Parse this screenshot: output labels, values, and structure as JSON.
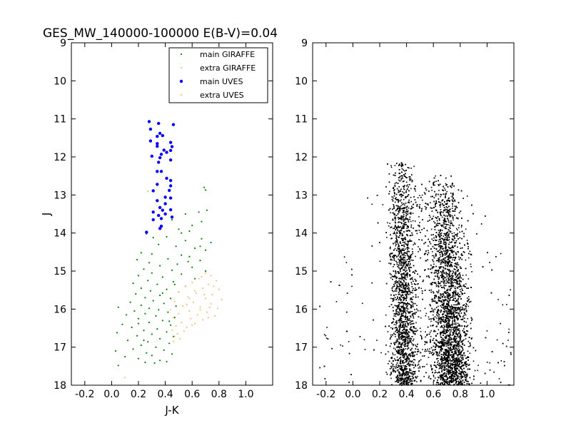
{
  "chart_data": [
    {
      "type": "scatter",
      "title": "GES_MW_140000-100000 E(B-V)=0.04",
      "xlabel": "J-K",
      "ylabel": "J",
      "xlim": [
        -0.3,
        1.2
      ],
      "ylim": [
        18,
        9
      ],
      "y_inverted": true,
      "x_ticks": [
        "-0.2",
        "0.0",
        "0.2",
        "0.4",
        "0.6",
        "0.8",
        "1.0"
      ],
      "y_ticks": [
        "9",
        "10",
        "11",
        "12",
        "13",
        "14",
        "15",
        "16",
        "17",
        "18"
      ],
      "legend_position": "top-right",
      "legend": [
        {
          "label": "main GIRAFFE",
          "color": "#008000",
          "marker": "small-dot"
        },
        {
          "label": "extra GIRAFFE",
          "color": "#f2c27a",
          "marker": "small-dot"
        },
        {
          "label": "main UVES",
          "color": "#0000ff",
          "marker": "dot"
        },
        {
          "label": "extra UVES",
          "color": "#f2c27a",
          "marker": "small-dot"
        }
      ],
      "series": [
        {
          "name": "main UVES",
          "color": "#0000ff",
          "points": [
            [
              0.28,
              11.07
            ],
            [
              0.29,
              11.27
            ],
            [
              0.35,
              11.12
            ],
            [
              0.46,
              11.15
            ],
            [
              0.36,
              11.38
            ],
            [
              0.34,
              11.46
            ],
            [
              0.38,
              11.44
            ],
            [
              0.29,
              11.58
            ],
            [
              0.34,
              11.65
            ],
            [
              0.34,
              11.72
            ],
            [
              0.44,
              11.62
            ],
            [
              0.45,
              11.73
            ],
            [
              0.39,
              11.82
            ],
            [
              0.44,
              11.83
            ],
            [
              0.37,
              11.93
            ],
            [
              0.41,
              11.88
            ],
            [
              0.3,
              11.98
            ],
            [
              0.36,
              12.02
            ],
            [
              0.35,
              12.14
            ],
            [
              0.44,
              12.08
            ],
            [
              0.34,
              12.38
            ],
            [
              0.37,
              12.38
            ],
            [
              0.41,
              12.56
            ],
            [
              0.44,
              12.62
            ],
            [
              0.34,
              12.72
            ],
            [
              0.44,
              12.76
            ],
            [
              0.31,
              12.89
            ],
            [
              0.43,
              12.88
            ],
            [
              0.4,
              13.06
            ],
            [
              0.44,
              13.08
            ],
            [
              0.34,
              13.15
            ],
            [
              0.4,
              13.23
            ],
            [
              0.36,
              13.33
            ],
            [
              0.38,
              13.4
            ],
            [
              0.44,
              13.39
            ],
            [
              0.31,
              13.45
            ],
            [
              0.35,
              13.54
            ],
            [
              0.4,
              13.5
            ],
            [
              0.45,
              13.58
            ],
            [
              0.31,
              13.65
            ],
            [
              0.37,
              13.62
            ],
            [
              0.37,
              13.82
            ],
            [
              0.36,
              13.88
            ],
            [
              0.26,
              13.98
            ]
          ]
        },
        {
          "name": "main GIRAFFE",
          "color": "#008000",
          "points": [
            [
              0.69,
              12.8
            ],
            [
              0.7,
              12.87
            ],
            [
              0.55,
              13.5
            ],
            [
              0.71,
              13.4
            ],
            [
              0.65,
              13.45
            ],
            [
              0.45,
              13.65
            ],
            [
              0.67,
              13.7
            ],
            [
              0.6,
              13.8
            ],
            [
              0.5,
              13.9
            ],
            [
              0.58,
              13.95
            ],
            [
              0.26,
              14.02
            ],
            [
              0.41,
              14.1
            ],
            [
              0.67,
              14.15
            ],
            [
              0.55,
              14.2
            ],
            [
              0.74,
              14.25
            ],
            [
              0.35,
              14.3
            ],
            [
              0.48,
              14.35
            ],
            [
              0.62,
              14.4
            ],
            [
              0.7,
              14.45
            ],
            [
              0.22,
              14.52
            ],
            [
              0.3,
              14.55
            ],
            [
              0.52,
              14.58
            ],
            [
              0.58,
              14.62
            ],
            [
              0.42,
              14.68
            ],
            [
              0.19,
              14.7
            ],
            [
              0.66,
              14.72
            ],
            [
              0.28,
              14.78
            ],
            [
              0.49,
              14.82
            ],
            [
              0.36,
              14.86
            ],
            [
              0.6,
              14.9
            ],
            [
              0.24,
              14.95
            ],
            [
              0.45,
              14.98
            ],
            [
              0.7,
              15.0
            ],
            [
              0.3,
              15.05
            ],
            [
              0.52,
              15.08
            ],
            [
              0.2,
              15.12
            ],
            [
              0.38,
              15.16
            ],
            [
              0.62,
              15.2
            ],
            [
              0.27,
              15.25
            ],
            [
              0.46,
              15.28
            ],
            [
              0.16,
              15.32
            ],
            [
              0.34,
              15.35
            ],
            [
              0.55,
              15.4
            ],
            [
              0.22,
              15.45
            ],
            [
              0.41,
              15.48
            ],
            [
              0.29,
              15.52
            ],
            [
              0.5,
              15.55
            ],
            [
              0.18,
              15.6
            ],
            [
              0.36,
              15.64
            ],
            [
              0.25,
              15.7
            ],
            [
              0.44,
              15.72
            ],
            [
              0.31,
              15.78
            ],
            [
              0.14,
              15.82
            ],
            [
              0.39,
              15.85
            ],
            [
              0.22,
              15.9
            ],
            [
              0.48,
              15.92
            ],
            [
              0.28,
              15.98
            ],
            [
              0.05,
              15.95
            ],
            [
              0.35,
              16.02
            ],
            [
              0.17,
              16.05
            ],
            [
              0.42,
              16.08
            ],
            [
              0.25,
              16.12
            ],
            [
              0.11,
              16.15
            ],
            [
              0.33,
              16.18
            ],
            [
              0.47,
              16.22
            ],
            [
              0.2,
              16.25
            ],
            [
              0.38,
              16.3
            ],
            [
              0.28,
              16.35
            ],
            [
              0.08,
              16.4
            ],
            [
              0.44,
              16.42
            ],
            [
              0.15,
              16.48
            ],
            [
              0.34,
              16.52
            ],
            [
              0.24,
              16.56
            ],
            [
              0.41,
              16.6
            ],
            [
              0.04,
              16.62
            ],
            [
              0.3,
              16.66
            ],
            [
              0.19,
              16.7
            ],
            [
              0.46,
              16.72
            ],
            [
              0.36,
              16.78
            ],
            [
              0.12,
              16.82
            ],
            [
              0.27,
              16.86
            ],
            [
              0.43,
              16.9
            ],
            [
              0.22,
              16.95
            ],
            [
              0.33,
              17.0
            ],
            [
              0.16,
              17.05
            ],
            [
              0.39,
              17.08
            ],
            [
              0.03,
              17.1
            ],
            [
              0.26,
              17.15
            ],
            [
              0.45,
              17.18
            ],
            [
              0.3,
              17.22
            ],
            [
              0.1,
              17.25
            ],
            [
              0.2,
              17.3
            ],
            [
              0.36,
              17.35
            ],
            [
              0.41,
              17.38
            ],
            [
              0.32,
              17.42
            ],
            [
              0.05,
              17.48
            ],
            [
              0.25,
              17.4
            ],
            [
              0.52,
              14.0
            ],
            [
              0.66,
              14.35
            ],
            [
              0.57,
              14.75
            ],
            [
              0.31,
              14.12
            ],
            [
              0.47,
              15.35
            ],
            [
              0.24,
              16.82
            ],
            [
              0.38,
              15.58
            ],
            [
              0.2,
              16.38
            ],
            [
              0.43,
              16.32
            ]
          ]
        },
        {
          "name": "extra GIRAFFE",
          "color": "#f2c27a",
          "points": [
            [
              0.7,
              15.05
            ],
            [
              0.74,
              15.12
            ],
            [
              0.65,
              15.2
            ],
            [
              0.78,
              15.25
            ],
            [
              0.6,
              15.3
            ],
            [
              0.72,
              15.35
            ],
            [
              0.55,
              15.4
            ],
            [
              0.68,
              15.45
            ],
            [
              0.8,
              15.48
            ],
            [
              0.5,
              15.55
            ],
            [
              0.63,
              15.58
            ],
            [
              0.75,
              15.62
            ],
            [
              0.57,
              15.68
            ],
            [
              0.7,
              15.72
            ],
            [
              0.82,
              15.75
            ],
            [
              0.47,
              15.8
            ],
            [
              0.61,
              15.82
            ],
            [
              0.74,
              15.86
            ],
            [
              0.53,
              15.92
            ],
            [
              0.66,
              15.95
            ],
            [
              0.79,
              15.98
            ],
            [
              0.44,
              16.02
            ],
            [
              0.58,
              16.05
            ],
            [
              0.71,
              16.08
            ],
            [
              0.5,
              16.12
            ],
            [
              0.64,
              16.15
            ],
            [
              0.77,
              16.18
            ],
            [
              0.46,
              16.22
            ],
            [
              0.59,
              16.25
            ],
            [
              0.68,
              16.28
            ],
            [
              0.52,
              16.35
            ],
            [
              0.62,
              16.38
            ],
            [
              0.48,
              16.45
            ],
            [
              0.56,
              16.48
            ],
            [
              0.45,
              16.55
            ],
            [
              0.54,
              16.58
            ],
            [
              0.49,
              16.65
            ],
            [
              0.47,
              16.72
            ],
            [
              0.51,
              16.78
            ],
            [
              0.46,
              16.85
            ],
            [
              0.67,
              15.15
            ],
            [
              0.76,
              15.4
            ],
            [
              0.62,
              15.52
            ],
            [
              0.73,
              15.95
            ],
            [
              0.56,
              15.88
            ],
            [
              0.66,
              16.02
            ],
            [
              0.6,
              16.42
            ],
            [
              0.72,
              16.22
            ],
            [
              0.69,
              15.62
            ],
            [
              0.58,
              15.72
            ],
            [
              0.27,
              12.9
            ],
            [
              0.1,
              17.8
            ]
          ]
        },
        {
          "name": "extra UVES",
          "color": "#f2c27a",
          "points": []
        }
      ]
    },
    {
      "type": "scatter",
      "title": "",
      "xlabel": "",
      "ylabel": "",
      "xlim": [
        -0.3,
        1.2
      ],
      "ylim": [
        18,
        9
      ],
      "y_inverted": true,
      "x_ticks": [
        "-0.2",
        "0.0",
        "0.2",
        "0.4",
        "0.6",
        "0.8",
        "1.0"
      ],
      "y_ticks": [
        "9",
        "10",
        "11",
        "12",
        "13",
        "14",
        "15",
        "16",
        "17",
        "18"
      ],
      "color": "#000000",
      "point_count": 9000,
      "distribution": "dense field population: bright branch near J-K 0.30-0.42 from J 12.1 to 18, red clump/giant branch near J-K 0.60-0.85 from J 12.4 to 18 densest at J 16.5-18, sparse scatter from J-K -0.25 to 1.2"
    }
  ]
}
